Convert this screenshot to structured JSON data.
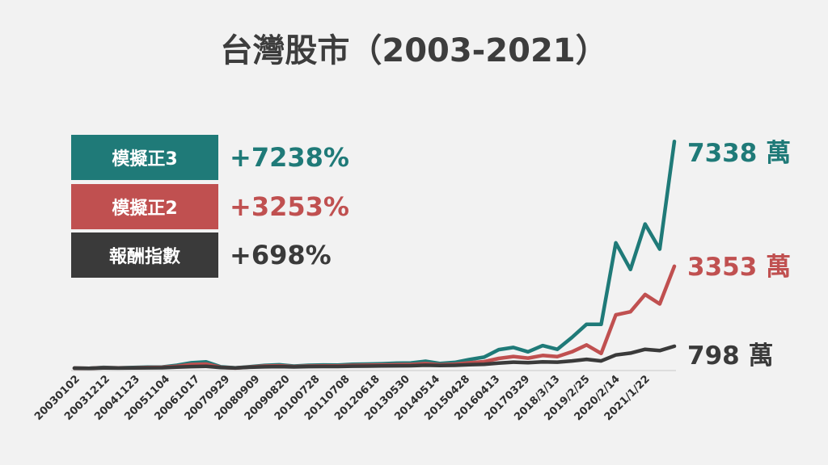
{
  "chart_data": {
    "type": "line",
    "title": "台灣股市（2003-2021）",
    "x_tick_labels": [
      "20030102",
      "20031212",
      "20041123",
      "20051104",
      "20061017",
      "20070929",
      "20080909",
      "20090820",
      "20100728",
      "20110708",
      "20120618",
      "20130530",
      "20140514",
      "20150428",
      "20160413",
      "20170329",
      "2018/3/13",
      "2019/2/25",
      "2020/2/14",
      "2021/1/22"
    ],
    "series": [
      {
        "name": "模擬正3",
        "return_label": "+7238%",
        "end_label": "7338 萬",
        "color": "#1f7a78",
        "values": [
          100,
          93,
          124,
          108,
          117,
          130,
          135,
          190,
          270,
          300,
          142,
          105,
          145,
          188,
          205,
          165,
          190,
          200,
          198,
          222,
          230,
          240,
          258,
          265,
          320,
          246,
          284,
          375,
          450,
          690,
          760,
          620,
          820,
          700,
          1080,
          1500,
          1500,
          4100,
          3250,
          4700,
          3900,
          7338
        ]
      },
      {
        "name": "模擬正2",
        "return_label": "+3253%",
        "end_label": "3353 萬",
        "color": "#c05050",
        "values": [
          100,
          93,
          112,
          105,
          110,
          120,
          125,
          160,
          215,
          230,
          125,
          103,
          135,
          165,
          175,
          150,
          165,
          172,
          170,
          188,
          193,
          200,
          212,
          215,
          245,
          205,
          225,
          270,
          305,
          410,
          470,
          420,
          505,
          465,
          620,
          840,
          570,
          1800,
          1900,
          2450,
          2150,
          3353
        ]
      },
      {
        "name": "報酬指數",
        "return_label": "+698%",
        "end_label": "798 萬",
        "color": "#3a3a3a",
        "values": [
          100,
          96,
          107,
          103,
          106,
          111,
          114,
          130,
          150,
          158,
          118,
          106,
          128,
          140,
          148,
          138,
          148,
          152,
          151,
          161,
          164,
          169,
          176,
          178,
          192,
          182,
          190,
          208,
          222,
          262,
          290,
          274,
          300,
          290,
          330,
          380,
          330,
          520,
          580,
          700,
          660,
          798
        ]
      }
    ]
  }
}
